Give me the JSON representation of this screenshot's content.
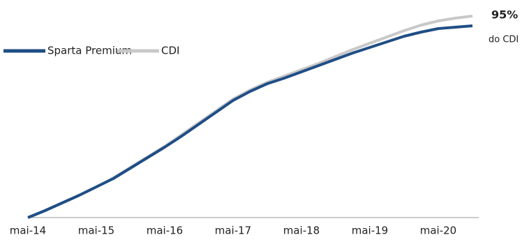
{
  "chart_data": {
    "type": "line",
    "categories": [
      "mai-14",
      null,
      null,
      null,
      "mai-15",
      null,
      null,
      null,
      "mai-16",
      null,
      null,
      null,
      "mai-17",
      null,
      null,
      null,
      "mai-18",
      null,
      null,
      null,
      "mai-19",
      null,
      null,
      null,
      "mai-20",
      null,
      null
    ],
    "series": [
      {
        "name": "Sparta Premium",
        "color": "#1f4e86",
        "values": [
          0,
          10,
          21,
          32,
          44,
          56,
          71,
          86,
          101,
          117,
          134,
          151,
          168,
          181,
          192,
          200,
          209,
          218,
          227,
          236,
          244,
          252,
          260,
          266,
          271,
          273,
          275
        ]
      },
      {
        "name": "CDI",
        "color": "#c8c8c8",
        "values": [
          0,
          10,
          21,
          32,
          44,
          57,
          72,
          87,
          102,
          119,
          136,
          153,
          170,
          183,
          194,
          203,
          212,
          221,
          231,
          241,
          250,
          259,
          268,
          276,
          282,
          286,
          289
        ]
      }
    ],
    "ylim": [
      0,
      290
    ],
    "annotations": [
      "95%",
      "do CDI"
    ]
  }
}
